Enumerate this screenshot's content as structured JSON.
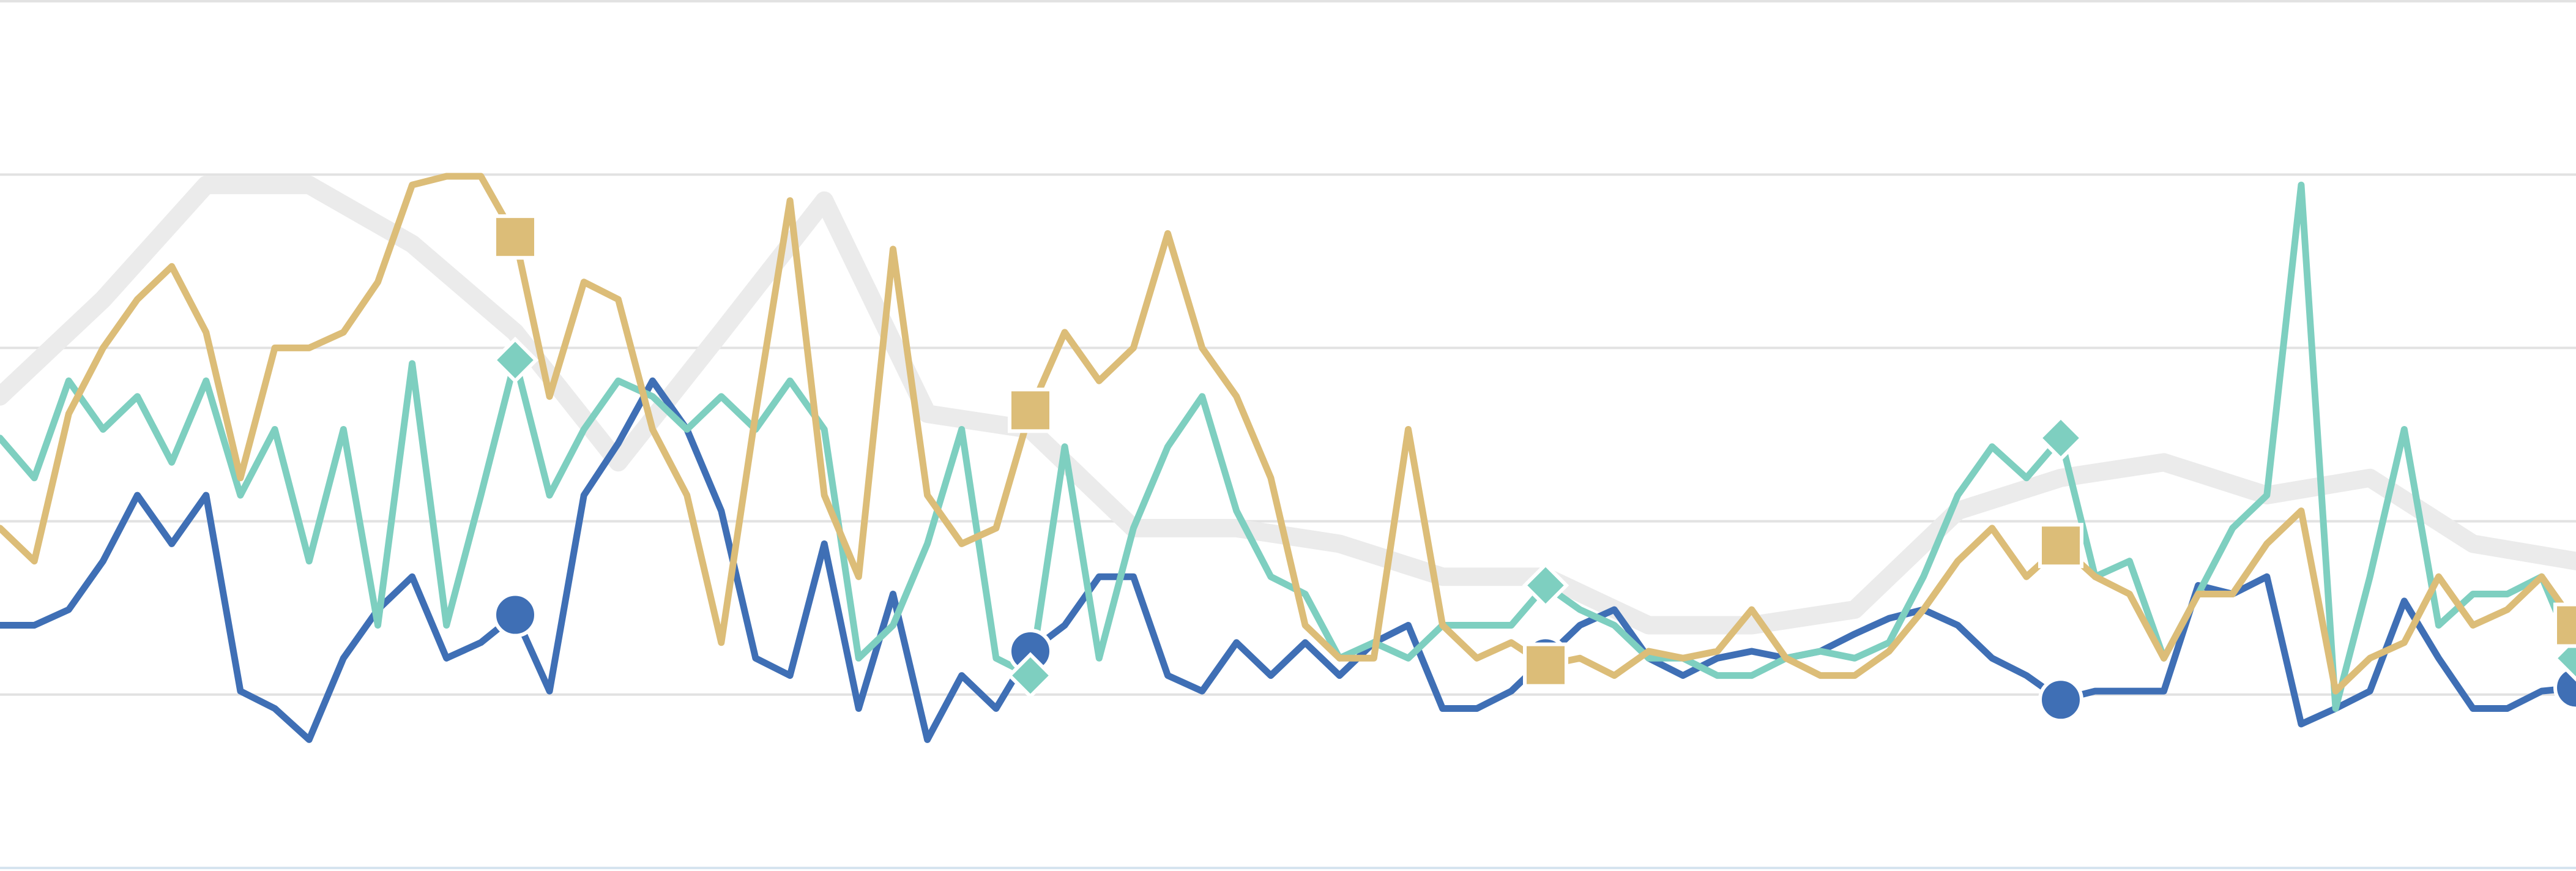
{
  "chart_data": {
    "type": "line",
    "xlim": [
      0,
      300
    ],
    "ylim": [
      0,
      5
    ],
    "yticks": [
      0,
      1,
      2,
      3,
      4,
      5
    ],
    "grid": true,
    "marker_every": 15,
    "series": [
      {
        "color": "#ebebeb",
        "width": 30,
        "x": [
          0,
          12,
          24,
          36,
          48,
          60,
          72,
          84,
          96,
          108,
          120,
          132,
          144,
          156,
          168,
          180,
          192,
          204,
          216,
          228,
          240,
          252,
          264,
          276,
          288,
          300
        ],
        "values": [
          2.72,
          3.28,
          3.94,
          3.94,
          3.6,
          3.09,
          2.34,
          3.09,
          3.85,
          2.62,
          2.53,
          1.96,
          1.96,
          1.87,
          1.68,
          1.68,
          1.4,
          1.4,
          1.49,
          2.06,
          2.25,
          2.34,
          2.15,
          2.25,
          1.87,
          1.77
        ]
      },
      {
        "color": "#3f6fb5",
        "width": 11,
        "marker": "circle",
        "x": [
          0,
          4,
          8,
          12,
          16,
          20,
          24,
          28,
          32,
          36,
          40,
          44,
          48,
          52,
          56,
          60,
          64,
          68,
          72,
          76,
          80,
          84,
          88,
          92,
          96,
          100,
          104,
          108,
          112,
          116,
          120,
          124,
          128,
          132,
          136,
          140,
          144,
          148,
          152,
          156,
          160,
          164,
          168,
          172,
          176,
          180,
          184,
          188,
          192,
          196,
          200,
          204,
          208,
          212,
          216,
          220,
          224,
          228,
          232,
          236,
          240,
          244,
          248,
          252,
          256,
          260,
          264,
          268,
          272,
          276,
          280,
          284,
          288,
          292,
          296,
          300
        ],
        "values": [
          1.4,
          1.4,
          1.49,
          1.77,
          2.15,
          1.87,
          2.15,
          1.02,
          0.92,
          0.74,
          1.21,
          1.49,
          1.68,
          1.21,
          1.3,
          1.46,
          1.02,
          2.15,
          2.45,
          2.81,
          2.53,
          2.06,
          1.21,
          1.11,
          1.87,
          0.92,
          1.58,
          0.74,
          1.11,
          0.92,
          1.25,
          1.4,
          1.68,
          1.68,
          1.11,
          1.02,
          1.3,
          1.11,
          1.3,
          1.11,
          1.3,
          1.4,
          0.92,
          0.92,
          1.02,
          1.21,
          1.4,
          1.49,
          1.21,
          1.11,
          1.21,
          1.25,
          1.21,
          1.25,
          1.35,
          1.44,
          1.49,
          1.4,
          1.21,
          1.11,
          0.97,
          1.02,
          1.02,
          1.02,
          1.63,
          1.58,
          1.68,
          0.83,
          0.92,
          1.02,
          1.54,
          1.21,
          0.92,
          0.92,
          1.02,
          1.04
        ]
      },
      {
        "color": "#7ecfc0",
        "width": 11,
        "marker": "diamond",
        "x": [
          0,
          4,
          8,
          12,
          16,
          20,
          24,
          28,
          32,
          36,
          40,
          44,
          48,
          52,
          56,
          60,
          64,
          68,
          72,
          76,
          80,
          84,
          88,
          92,
          96,
          100,
          104,
          108,
          112,
          116,
          120,
          124,
          128,
          132,
          136,
          140,
          144,
          148,
          152,
          156,
          160,
          164,
          168,
          172,
          176,
          180,
          184,
          188,
          192,
          196,
          200,
          204,
          208,
          212,
          216,
          220,
          224,
          228,
          232,
          236,
          240,
          244,
          248,
          252,
          256,
          260,
          264,
          268,
          272,
          276,
          280,
          284,
          288,
          292,
          296,
          300
        ],
        "values": [
          2.48,
          2.25,
          2.81,
          2.53,
          2.72,
          2.34,
          2.81,
          2.15,
          2.53,
          1.77,
          2.53,
          1.4,
          2.91,
          1.4,
          2.15,
          2.93,
          2.15,
          2.53,
          2.81,
          2.72,
          2.53,
          2.72,
          2.53,
          2.81,
          2.53,
          1.21,
          1.4,
          1.87,
          2.53,
          1.21,
          1.11,
          2.43,
          1.21,
          1.96,
          2.43,
          2.72,
          2.06,
          1.68,
          1.58,
          1.21,
          1.3,
          1.21,
          1.4,
          1.4,
          1.4,
          1.63,
          1.49,
          1.4,
          1.21,
          1.21,
          1.11,
          1.11,
          1.21,
          1.25,
          1.21,
          1.3,
          1.68,
          2.15,
          2.43,
          2.25,
          2.48,
          1.68,
          1.77,
          1.21,
          1.58,
          1.96,
          2.15,
          3.94,
          0.92,
          1.68,
          2.53,
          1.4,
          1.58,
          1.58,
          1.68,
          1.21
        ]
      },
      {
        "color": "#dcbd78",
        "width": 11,
        "marker": "square",
        "x": [
          0,
          4,
          8,
          12,
          16,
          20,
          24,
          28,
          32,
          36,
          40,
          44,
          48,
          52,
          56,
          60,
          64,
          68,
          72,
          76,
          80,
          84,
          88,
          92,
          96,
          100,
          104,
          108,
          112,
          116,
          120,
          124,
          128,
          132,
          136,
          140,
          144,
          148,
          152,
          156,
          160,
          164,
          168,
          172,
          176,
          180,
          184,
          188,
          192,
          196,
          200,
          204,
          208,
          212,
          216,
          220,
          224,
          228,
          232,
          236,
          240,
          244,
          248,
          252,
          256,
          260,
          264,
          268,
          272,
          276,
          280,
          284,
          288,
          292,
          296,
          300
        ],
        "values": [
          1.96,
          1.77,
          2.62,
          3.0,
          3.28,
          3.47,
          3.09,
          2.25,
          3.0,
          3.0,
          3.09,
          3.38,
          3.94,
          3.99,
          3.99,
          3.64,
          2.72,
          3.38,
          3.28,
          2.53,
          2.15,
          1.3,
          2.62,
          3.85,
          2.15,
          1.68,
          3.57,
          2.15,
          1.87,
          1.96,
          2.64,
          3.09,
          2.81,
          3.0,
          3.66,
          3.0,
          2.72,
          2.25,
          1.4,
          1.21,
          1.21,
          2.53,
          1.4,
          1.21,
          1.3,
          1.17,
          1.21,
          1.11,
          1.25,
          1.21,
          1.25,
          1.49,
          1.21,
          1.11,
          1.11,
          1.25,
          1.49,
          1.77,
          1.96,
          1.68,
          1.86,
          1.68,
          1.58,
          1.21,
          1.58,
          1.58,
          1.87,
          2.06,
          1.02,
          1.21,
          1.3,
          1.68,
          1.4,
          1.49,
          1.68,
          1.4
        ]
      }
    ]
  }
}
